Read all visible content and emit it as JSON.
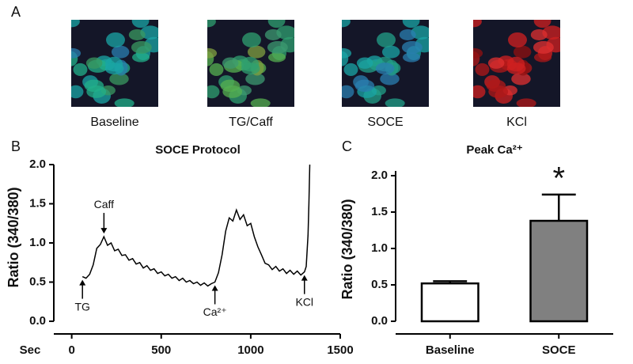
{
  "panel_a": {
    "label": "A",
    "captions": [
      "Baseline",
      "TG/Caff",
      "SOCE",
      "KCl"
    ]
  },
  "chart_data": [
    {
      "type": "line",
      "label": "B",
      "title": "SOCE Protocol",
      "y_label": "Ratio (340/380)",
      "x_label": "Sec",
      "color": "#000000",
      "x": [
        60,
        80,
        100,
        120,
        140,
        160,
        180,
        200,
        220,
        240,
        260,
        280,
        300,
        320,
        340,
        360,
        380,
        400,
        420,
        440,
        460,
        480,
        500,
        520,
        540,
        560,
        580,
        600,
        620,
        640,
        660,
        680,
        700,
        720,
        740,
        760,
        780,
        800,
        820,
        840,
        860,
        880,
        900,
        920,
        940,
        960,
        980,
        1000,
        1020,
        1040,
        1060,
        1080,
        1100,
        1120,
        1140,
        1160,
        1180,
        1200,
        1220,
        1240,
        1260,
        1280,
        1300,
        1310,
        1320,
        1325,
        1330
      ],
      "values": [
        0.57,
        0.55,
        0.6,
        0.72,
        0.93,
        0.98,
        1.08,
        0.97,
        1.0,
        0.9,
        0.92,
        0.84,
        0.85,
        0.78,
        0.8,
        0.73,
        0.75,
        0.68,
        0.71,
        0.65,
        0.67,
        0.61,
        0.63,
        0.58,
        0.6,
        0.55,
        0.57,
        0.52,
        0.55,
        0.5,
        0.52,
        0.48,
        0.5,
        0.46,
        0.49,
        0.45,
        0.48,
        0.5,
        0.62,
        0.85,
        1.15,
        1.32,
        1.28,
        1.42,
        1.3,
        1.36,
        1.22,
        1.25,
        1.08,
        0.95,
        0.85,
        0.74,
        0.72,
        0.66,
        0.7,
        0.64,
        0.67,
        0.61,
        0.65,
        0.6,
        0.64,
        0.59,
        0.63,
        0.7,
        1.1,
        1.5,
        2.0
      ],
      "xlim": [
        -100,
        1500
      ],
      "xticks": [
        0,
        500,
        1000,
        1500
      ],
      "ylim": [
        0,
        2.0
      ],
      "yticks": [
        {
          "value": 0,
          "label": "0.0"
        },
        0.5,
        {
          "value": 1,
          "label": "1.0"
        },
        1.5,
        {
          "value": 2,
          "label": "2.0"
        }
      ],
      "annotations": [
        {
          "text": "TG",
          "x": 60,
          "side": "below"
        },
        {
          "text": "Caff",
          "x": 180,
          "side": "above"
        },
        {
          "text": "Ca²⁺",
          "x": 800,
          "side": "below"
        },
        {
          "text": "KCl",
          "x": 1300,
          "side": "below"
        }
      ]
    },
    {
      "type": "bar",
      "label": "C",
      "title": "Peak Ca²⁺",
      "y_label": "Ratio (340/380)",
      "categories": [
        "Baseline",
        "SOCE"
      ],
      "values": [
        0.52,
        1.38
      ],
      "errors": [
        0.03,
        0.36
      ],
      "colors": [
        "#ffffff",
        "#808080"
      ],
      "ylim": [
        0,
        2.0
      ],
      "yticks": [
        {
          "value": 0,
          "label": "0.0"
        },
        0.5,
        {
          "value": 1,
          "label": "1.0"
        },
        1.5,
        {
          "value": 2,
          "label": "2.0"
        }
      ],
      "annotations": [
        {
          "text": "*",
          "category": "SOCE"
        }
      ]
    }
  ]
}
